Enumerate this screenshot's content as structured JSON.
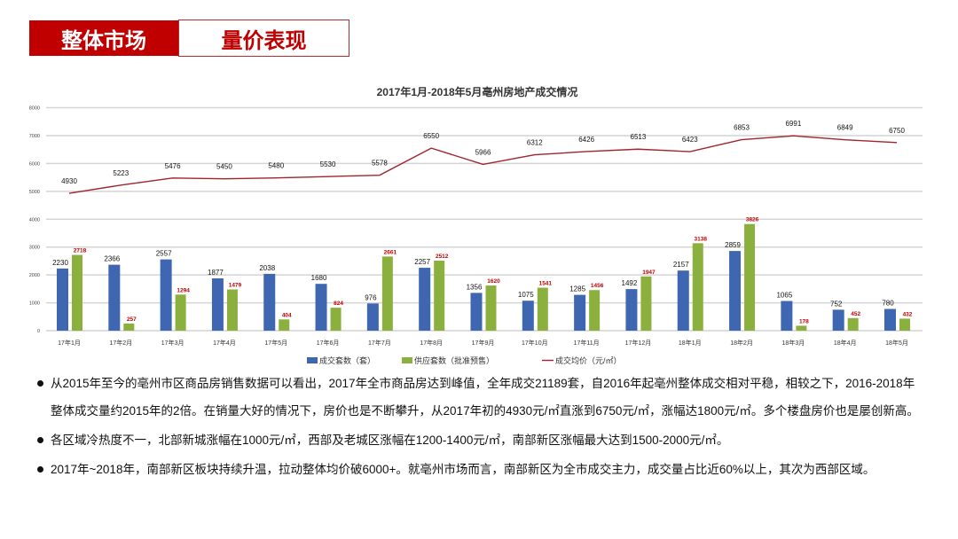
{
  "header": {
    "section": "整体市场",
    "subsection": "量价表现"
  },
  "chart_data": {
    "type": "bar+line",
    "title": "2017年1月-2018年5月亳州房地产成交情况",
    "categories": [
      "17年1月",
      "17年2月",
      "17年3月",
      "17年4月",
      "17年5月",
      "17年6月",
      "17年7月",
      "17年8月",
      "17年9月",
      "17年10月",
      "17年11月",
      "17年12月",
      "18年1月",
      "18年2月",
      "18年3月",
      "18年4月",
      "18年5月"
    ],
    "ylim": [
      0,
      8000
    ],
    "yticks": [
      0,
      1000,
      2000,
      3000,
      4000,
      5000,
      6000,
      7000,
      8000
    ],
    "grid": true,
    "legend_position": "bottom",
    "series": [
      {
        "name": "成交套数（套）",
        "type": "bar",
        "color": "#3f67b1",
        "label_color": "#111111",
        "values": [
          2230,
          2366,
          2557,
          1877,
          2038,
          1680,
          976,
          2257,
          1356,
          1075,
          1285,
          1492,
          2157,
          2859,
          1065,
          752,
          780
        ]
      },
      {
        "name": "供应套数（批准预售）",
        "type": "bar",
        "color": "#8cb03e",
        "label_color": "#c00000",
        "values": [
          2718,
          257,
          1294,
          1479,
          404,
          824,
          2661,
          2512,
          1620,
          1541,
          1456,
          1947,
          3138,
          3826,
          178,
          452,
          432
        ]
      },
      {
        "name": "成交均价（元/㎡）",
        "type": "line",
        "color": "#a3232c",
        "label_color": "#111111",
        "values": [
          4930,
          5223,
          5476,
          5450,
          5480,
          5530,
          5578,
          6550,
          5966,
          6312,
          6426,
          6513,
          6423,
          6853,
          6991,
          6849,
          6750
        ]
      }
    ]
  },
  "bullets": [
    "从2015年至今的亳州市区商品房销售数据可以看出，2017年全市商品房达到峰值，全年成交21189套，自2016年起亳州整体成交相对平稳，相较之下，2016-2018年整体成交量约2015年的2倍。在销量大好的情况下，房价也是不断攀升，从2017年初的4930元/㎡直涨到6750元/㎡，涨幅达1800元/㎡。多个楼盘房价也是屡创新高。",
    "各区域冷热度不一，北部新城涨幅在1000元/㎡，西部及老城区涨幅在1200-1400元/㎡，南部新区涨幅最大达到1500-2000元/㎡。",
    "2017年~2018年，南部新区板块持续升温，拉动整体均价破6000+。就亳州市场而言，南部新区为全市成交主力，成交量占比近60%以上，其次为西部区域。"
  ]
}
